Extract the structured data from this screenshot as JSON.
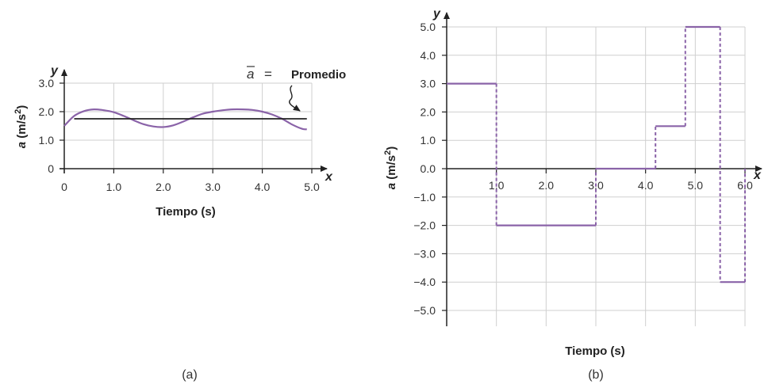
{
  "chart_data": [
    {
      "type": "line",
      "panel_label": "(a)",
      "xlabel": "Tiempo (s)",
      "ylabel_unit": " (m/s",
      "ylabel_sup": "2",
      "ylabel_end": ")",
      "ylabel_var": "a",
      "x_axis_letter": "x",
      "y_axis_letter": "y",
      "xlim": [
        0,
        5.0
      ],
      "ylim": [
        0,
        3.0
      ],
      "x_ticks": [
        0,
        1.0,
        2.0,
        3.0,
        4.0,
        5.0
      ],
      "x_tick_labels": [
        "0",
        "1.0",
        "2.0",
        "3.0",
        "4.0",
        "5.0"
      ],
      "y_ticks": [
        0,
        1.0,
        2.0,
        3.0
      ],
      "y_tick_labels": [
        "0",
        "1.0",
        "2.0",
        "3.0"
      ],
      "grid": true,
      "curve_color": "#8a63a8",
      "average_color": "#222222",
      "series": [
        {
          "x": [
            0,
            0.2,
            0.4,
            0.6,
            0.8,
            1.0,
            1.2,
            1.4,
            1.6,
            1.8,
            2.0,
            2.2,
            2.4,
            2.6,
            2.8,
            3.0,
            3.2,
            3.4,
            3.6,
            3.8,
            4.0,
            4.2,
            4.4,
            4.6,
            4.8,
            4.9
          ],
          "values": [
            1.5,
            1.85,
            2.02,
            2.08,
            2.05,
            1.98,
            1.85,
            1.7,
            1.56,
            1.48,
            1.46,
            1.52,
            1.65,
            1.8,
            1.93,
            2.0,
            2.05,
            2.08,
            2.08,
            2.06,
            2.0,
            1.9,
            1.75,
            1.55,
            1.4,
            1.38
          ]
        },
        {
          "x": [
            0.2,
            4.9
          ],
          "values": [
            1.75,
            1.75
          ]
        }
      ],
      "annotation": {
        "symbol": "a",
        "equals": "=",
        "text": "Promedio"
      }
    },
    {
      "type": "line",
      "panel_label": "(b)",
      "xlabel": "Tiempo (s)",
      "ylabel_unit": " (m/s",
      "ylabel_sup": "2",
      "ylabel_end": ")",
      "ylabel_var": "a",
      "x_axis_letter": "x",
      "y_axis_letter": "y",
      "xlim": [
        0,
        6.0
      ],
      "ylim": [
        -5.0,
        5.0
      ],
      "x_ticks": [
        1.0,
        2.0,
        3.0,
        4.0,
        5.0,
        6.0
      ],
      "x_tick_labels": [
        "1.0",
        "2.0",
        "3.0",
        "4.0",
        "5.0",
        "6.0"
      ],
      "y_ticks": [
        5.0,
        4.0,
        3.0,
        2.0,
        1.0,
        0.0,
        -1.0,
        -2.0,
        -3.0,
        -4.0,
        -5.0
      ],
      "y_tick_labels": [
        "5.0",
        "4.0",
        "3.0",
        "2.0",
        "1.0",
        "0.0",
        "−1.0",
        "−2.0",
        "−3.0",
        "−4.0",
        "−5.0"
      ],
      "grid": true,
      "curve_color": "#8a63a8",
      "series": [
        {
          "segments": [
            {
              "x": [
                0,
                1.0
              ],
              "value": 3.0
            },
            {
              "x": [
                1.0,
                3.0
              ],
              "value": -2.0
            },
            {
              "x": [
                3.0,
                4.2
              ],
              "value": 0.0
            },
            {
              "x": [
                4.2,
                4.8
              ],
              "value": 1.5
            },
            {
              "x": [
                4.8,
                5.5
              ],
              "value": 5.0
            },
            {
              "x": [
                5.5,
                6.0
              ],
              "value": -4.0
            }
          ]
        }
      ]
    }
  ]
}
